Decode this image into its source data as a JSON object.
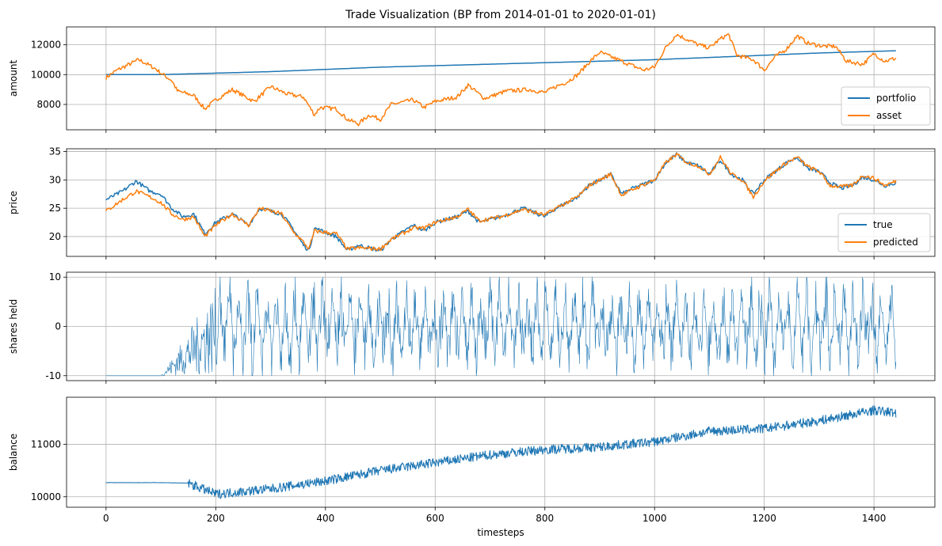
{
  "figure": {
    "title": "Trade Visualization (BP from 2014-01-01 to 2020-01-01)",
    "xlabel": "timesteps"
  },
  "colors": {
    "blue": "#1f77b4",
    "orange": "#ff7f0e",
    "grid": "#b0b0b0"
  },
  "chart_data": [
    {
      "type": "line",
      "ylabel": "amount",
      "xlim": [
        -72,
        1511
      ],
      "ylim": [
        6300,
        13200
      ],
      "xticks": [
        0,
        200,
        400,
        600,
        800,
        1000,
        1200,
        1400
      ],
      "yticks": [
        8000,
        10000,
        12000
      ],
      "grid": true,
      "legend": "lower right",
      "series": [
        {
          "name": "portfolio",
          "color": "#1f77b4",
          "points": [
            [
              0,
              10000
            ],
            [
              100,
              10000
            ],
            [
              200,
              10100
            ],
            [
              300,
              10200
            ],
            [
              400,
              10350
            ],
            [
              500,
              10500
            ],
            [
              600,
              10600
            ],
            [
              700,
              10700
            ],
            [
              800,
              10800
            ],
            [
              900,
              10900
            ],
            [
              1000,
              11000
            ],
            [
              1100,
              11150
            ],
            [
              1200,
              11300
            ],
            [
              1300,
              11450
            ],
            [
              1440,
              11600
            ]
          ]
        },
        {
          "name": "asset",
          "color": "#ff7f0e",
          "points": [
            [
              0,
              9800
            ],
            [
              20,
              10300
            ],
            [
              60,
              11000
            ],
            [
              90,
              10400
            ],
            [
              100,
              10100
            ],
            [
              120,
              9600
            ],
            [
              130,
              8900
            ],
            [
              160,
              8600
            ],
            [
              180,
              7700
            ],
            [
              200,
              8300
            ],
            [
              230,
              9000
            ],
            [
              270,
              8200
            ],
            [
              300,
              9200
            ],
            [
              330,
              8700
            ],
            [
              360,
              8500
            ],
            [
              380,
              7300
            ],
            [
              390,
              7800
            ],
            [
              420,
              7700
            ],
            [
              440,
              7000
            ],
            [
              460,
              6700
            ],
            [
              480,
              7300
            ],
            [
              500,
              7000
            ],
            [
              520,
              8000
            ],
            [
              560,
              8300
            ],
            [
              580,
              7800
            ],
            [
              600,
              8200
            ],
            [
              640,
              8500
            ],
            [
              660,
              9300
            ],
            [
              690,
              8400
            ],
            [
              730,
              8900
            ],
            [
              770,
              9000
            ],
            [
              800,
              8800
            ],
            [
              820,
              9200
            ],
            [
              840,
              9500
            ],
            [
              860,
              10000
            ],
            [
              880,
              10800
            ],
            [
              900,
              11500
            ],
            [
              980,
              10300
            ],
            [
              1000,
              10500
            ],
            [
              1020,
              11800
            ],
            [
              1040,
              12700
            ],
            [
              1080,
              12000
            ],
            [
              1100,
              11800
            ],
            [
              1120,
              12400
            ],
            [
              1135,
              12700
            ],
            [
              1150,
              11300
            ],
            [
              1180,
              11000
            ],
            [
              1200,
              10300
            ],
            [
              1220,
              11200
            ],
            [
              1240,
              11700
            ],
            [
              1260,
              12600
            ],
            [
              1280,
              12100
            ],
            [
              1310,
              11900
            ],
            [
              1330,
              11900
            ],
            [
              1350,
              10900
            ],
            [
              1380,
              10700
            ],
            [
              1400,
              11400
            ],
            [
              1420,
              10900
            ],
            [
              1440,
              11100
            ]
          ]
        }
      ]
    },
    {
      "type": "line",
      "ylabel": "price",
      "xlim": [
        -72,
        1511
      ],
      "ylim": [
        16.5,
        35.5
      ],
      "xticks": [
        0,
        200,
        400,
        600,
        800,
        1000,
        1200,
        1400
      ],
      "yticks": [
        20,
        25,
        30,
        35
      ],
      "grid": true,
      "legend": "lower right",
      "series": [
        {
          "name": "true",
          "color": "#1f77b4",
          "points": [
            [
              0,
              26.5
            ],
            [
              30,
              28.0
            ],
            [
              55,
              29.8
            ],
            [
              80,
              28.0
            ],
            [
              100,
              27.5
            ],
            [
              120,
              25.0
            ],
            [
              140,
              23.5
            ],
            [
              160,
              24.0
            ],
            [
              180,
              20.5
            ],
            [
              200,
              22.5
            ],
            [
              230,
              24.0
            ],
            [
              260,
              22.0
            ],
            [
              280,
              25.0
            ],
            [
              320,
              24.0
            ],
            [
              340,
              21.5
            ],
            [
              360,
              18.5
            ],
            [
              370,
              17.5
            ],
            [
              380,
              21.5
            ],
            [
              420,
              20.0
            ],
            [
              440,
              17.5
            ],
            [
              460,
              18.5
            ],
            [
              500,
              17.5
            ],
            [
              520,
              19.5
            ],
            [
              560,
              22.0
            ],
            [
              580,
              21.0
            ],
            [
              600,
              22.5
            ],
            [
              640,
              23.5
            ],
            [
              660,
              24.5
            ],
            [
              680,
              22.5
            ],
            [
              720,
              23.5
            ],
            [
              760,
              25.0
            ],
            [
              800,
              23.5
            ],
            [
              820,
              25.0
            ],
            [
              860,
              27.0
            ],
            [
              880,
              29.0
            ],
            [
              900,
              30.0
            ],
            [
              920,
              31.0
            ],
            [
              940,
              27.5
            ],
            [
              960,
              28.5
            ],
            [
              1000,
              30.0
            ],
            [
              1020,
              33.0
            ],
            [
              1040,
              34.5
            ],
            [
              1060,
              33.0
            ],
            [
              1080,
              32.5
            ],
            [
              1100,
              31.0
            ],
            [
              1120,
              33.5
            ],
            [
              1140,
              31.0
            ],
            [
              1160,
              30.0
            ],
            [
              1180,
              27.5
            ],
            [
              1200,
              30.0
            ],
            [
              1220,
              31.5
            ],
            [
              1240,
              33.0
            ],
            [
              1260,
              34.0
            ],
            [
              1280,
              32.0
            ],
            [
              1300,
              31.5
            ],
            [
              1320,
              29.5
            ],
            [
              1340,
              28.5
            ],
            [
              1360,
              29.0
            ],
            [
              1380,
              30.5
            ],
            [
              1400,
              30.0
            ],
            [
              1420,
              29.0
            ],
            [
              1440,
              29.5
            ]
          ]
        },
        {
          "name": "predicted",
          "color": "#ff7f0e",
          "points": [
            [
              0,
              24.5
            ],
            [
              30,
              26.5
            ],
            [
              55,
              28.0
            ],
            [
              80,
              27.0
            ],
            [
              100,
              26.0
            ],
            [
              120,
              24.0
            ],
            [
              140,
              23.0
            ],
            [
              160,
              23.5
            ],
            [
              180,
              20.0
            ],
            [
              200,
              22.0
            ],
            [
              230,
              24.0
            ],
            [
              260,
              22.0
            ],
            [
              280,
              25.0
            ],
            [
              320,
              24.0
            ],
            [
              340,
              21.0
            ],
            [
              360,
              19.0
            ],
            [
              370,
              17.8
            ],
            [
              380,
              21.0
            ],
            [
              420,
              20.5
            ],
            [
              440,
              17.8
            ],
            [
              460,
              18.0
            ],
            [
              500,
              17.8
            ],
            [
              520,
              19.5
            ],
            [
              560,
              21.5
            ],
            [
              580,
              21.5
            ],
            [
              600,
              22.5
            ],
            [
              640,
              23.5
            ],
            [
              660,
              24.8
            ],
            [
              680,
              22.8
            ],
            [
              720,
              23.5
            ],
            [
              760,
              24.8
            ],
            [
              800,
              23.8
            ],
            [
              820,
              25.0
            ],
            [
              860,
              27.0
            ],
            [
              880,
              29.0
            ],
            [
              900,
              30.0
            ],
            [
              920,
              31.0
            ],
            [
              940,
              27.3
            ],
            [
              960,
              28.3
            ],
            [
              1000,
              30.0
            ],
            [
              1020,
              33.0
            ],
            [
              1040,
              34.5
            ],
            [
              1060,
              33.0
            ],
            [
              1080,
              32.5
            ],
            [
              1100,
              31.0
            ],
            [
              1120,
              34.0
            ],
            [
              1140,
              31.0
            ],
            [
              1160,
              30.0
            ],
            [
              1180,
              27.0
            ],
            [
              1200,
              29.8
            ],
            [
              1220,
              31.5
            ],
            [
              1240,
              33.0
            ],
            [
              1260,
              34.0
            ],
            [
              1280,
              32.3
            ],
            [
              1300,
              31.5
            ],
            [
              1320,
              29.0
            ],
            [
              1340,
              28.8
            ],
            [
              1360,
              29.0
            ],
            [
              1380,
              30.8
            ],
            [
              1400,
              30.3
            ],
            [
              1420,
              29.0
            ],
            [
              1440,
              29.8
            ]
          ]
        }
      ]
    },
    {
      "type": "line",
      "ylabel": "shares held",
      "xlim": [
        -72,
        1511
      ],
      "ylim": [
        -11,
        11
      ],
      "xticks": [
        0,
        200,
        400,
        600,
        800,
        1000,
        1200,
        1400
      ],
      "yticks": [
        -10,
        0,
        10
      ],
      "grid": true,
      "series": [
        {
          "color": "#1f77b4",
          "pattern": "flat at -10 from 0 to 100, ramps in noise 100-200, then oscillates between -10 and 10 until 1440",
          "flat_value": -10,
          "flat_until": 100,
          "ramp_until": 200,
          "range": [
            -10,
            10
          ],
          "x_end": 1440
        }
      ]
    },
    {
      "type": "line",
      "ylabel": "balance",
      "xlabel": "timesteps",
      "xlim": [
        -72,
        1511
      ],
      "ylim": [
        9800,
        11900
      ],
      "xticks": [
        0,
        200,
        400,
        600,
        800,
        1000,
        1200,
        1400
      ],
      "yticks": [
        10000,
        11000
      ],
      "grid": true,
      "series": [
        {
          "color": "#1f77b4",
          "trend": [
            [
              0,
              10270
            ],
            [
              100,
              10270
            ],
            [
              150,
              10260
            ],
            [
              200,
              10050
            ],
            [
              300,
              10150
            ],
            [
              400,
              10300
            ],
            [
              500,
              10500
            ],
            [
              600,
              10650
            ],
            [
              700,
              10800
            ],
            [
              800,
              10900
            ],
            [
              900,
              10950
            ],
            [
              1000,
              11050
            ],
            [
              1100,
              11250
            ],
            [
              1200,
              11300
            ],
            [
              1300,
              11450
            ],
            [
              1400,
              11650
            ],
            [
              1440,
              11600
            ]
          ]
        }
      ]
    }
  ]
}
